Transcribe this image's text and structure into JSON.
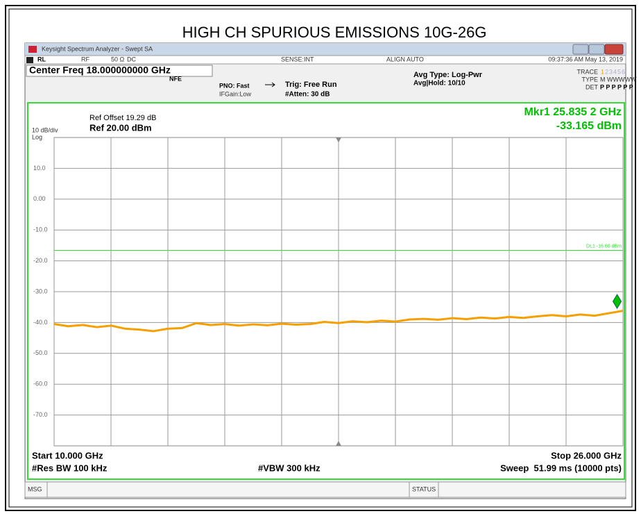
{
  "header": {
    "title": "HIGH CH SPURIOUS EMISSIONS 10G-26G"
  },
  "window": {
    "title": "Keysight Spectrum Analyzer - Swept SA"
  },
  "status_bar": {
    "rl": "RL",
    "rf": "RF",
    "impedance": "50 Ω",
    "coupling": "DC",
    "sense": "SENSE:INT",
    "align": "ALIGN AUTO",
    "time": "09:37:36 AM May 13, 2019"
  },
  "settings": {
    "center_freq": "Center Freq 18.000000000 GHz",
    "nfe": "NFE",
    "pno": "PNO: Fast",
    "ifgain": "IFGain:Low",
    "trig": "Trig: Free Run",
    "atten": "#Atten: 30 dB",
    "avg_type": "Avg Type: Log-Pwr",
    "avg_hold": "Avg|Hold: 10/10",
    "trace_label": "TRACE",
    "trace_nums": [
      "1",
      "2",
      "3",
      "4",
      "5",
      "6"
    ],
    "type_label": "TYPE",
    "type_value": "M WWWWW",
    "det_label": "DET",
    "det_value": "P P P P P P"
  },
  "chart_data": {
    "type": "line",
    "ref_offset": "Ref Offset 19.29 dB",
    "ref_level": "Ref 20.00 dBm",
    "scale": "10 dB/div",
    "scale_type": "Log",
    "marker": {
      "label": "Mkr1 25.835 2 GHz",
      "value_label": "-33.165 dBm",
      "x": 25.8352,
      "y": -33.165,
      "color": "#00c000"
    },
    "display_line": {
      "value": -16.6,
      "label": "DL1 -16.60 dBm",
      "color": "#33dd33"
    },
    "x": [
      10,
      10.4,
      10.8,
      11.2,
      11.6,
      12,
      12.4,
      12.8,
      13.2,
      13.6,
      14,
      14.4,
      14.8,
      15.2,
      15.6,
      16,
      16.4,
      16.8,
      17.2,
      17.6,
      18,
      18.4,
      18.8,
      19.2,
      19.6,
      20,
      20.4,
      20.8,
      21.2,
      21.6,
      22,
      22.4,
      22.8,
      23.2,
      23.6,
      24,
      24.4,
      24.8,
      25.2,
      25.6,
      26
    ],
    "series": [
      {
        "color": "#f5a000",
        "values": [
          -40.5,
          -41.2,
          -40.8,
          -41.5,
          -41,
          -42,
          -42.3,
          -42.8,
          -42,
          -41.8,
          -40.2,
          -40.8,
          -40.5,
          -41,
          -40.6,
          -40.9,
          -40.4,
          -40.7,
          -40.5,
          -39.8,
          -40.2,
          -39.6,
          -39.9,
          -39.4,
          -39.7,
          -39,
          -38.8,
          -39.1,
          -38.6,
          -38.9,
          -38.4,
          -38.7,
          -38.2,
          -38.5,
          -38,
          -37.6,
          -38,
          -37.4,
          -37.8,
          -37,
          -36.2
        ]
      }
    ],
    "xlim": [
      10,
      26
    ],
    "ylim": [
      -80,
      20
    ],
    "xticks": [
      10,
      11.6,
      13.2,
      14.8,
      16.4,
      18,
      19.6,
      21.2,
      22.8,
      24.4,
      26
    ],
    "yticks": [
      {
        "value": 10,
        "label": "10.0"
      },
      {
        "value": 0,
        "label": "0.00"
      },
      {
        "value": -10,
        "label": "-10.0"
      },
      {
        "value": -20,
        "label": "-20.0"
      },
      {
        "value": -30,
        "label": "-30.0"
      },
      {
        "value": -40,
        "label": "-40.0"
      },
      {
        "value": -50,
        "label": "-50.0"
      },
      {
        "value": -60,
        "label": "-60.0"
      },
      {
        "value": -70,
        "label": "-70.0"
      }
    ],
    "grid": true,
    "start": "Start 10.000 GHz",
    "stop": "Stop 26.000 GHz",
    "rbw": "#Res BW 100 kHz",
    "vbw": "#VBW 300 kHz",
    "sweep": "Sweep  51.99 ms (10000 pts)"
  },
  "footer": {
    "msg": "MSG",
    "status": "STATUS"
  }
}
